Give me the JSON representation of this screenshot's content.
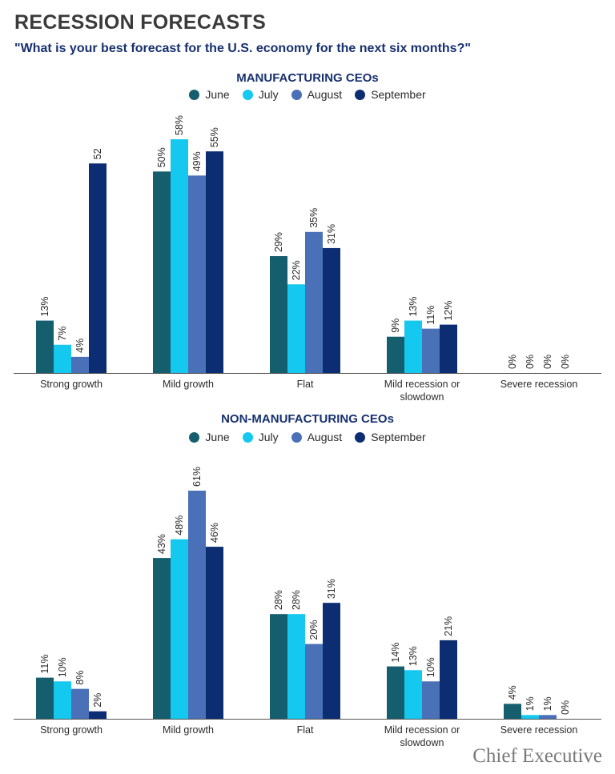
{
  "header": {
    "title": "RECESSION FORECASTS",
    "subtitle": "\"What is your best forecast for the U.S. economy for the next six months?\""
  },
  "footer": {
    "brand": "Chief Executive"
  },
  "series_colors": [
    "#155e6e",
    "#14c8ef",
    "#4a70b8",
    "#0d2d73"
  ],
  "chart_data": [
    {
      "type": "bar",
      "title": "MANUFACTURING CEOs",
      "legend_position": "top-center",
      "grid": false,
      "ylim": [
        0,
        58
      ],
      "categories": [
        "Strong growth",
        "Mild growth",
        "Flat",
        "Mild recession or slowdown",
        "Severe recession"
      ],
      "series": [
        {
          "name": "June",
          "values": [
            13,
            50,
            29,
            9,
            0
          ],
          "labels": [
            "13%",
            "50%",
            "29%",
            "9%",
            "0%"
          ]
        },
        {
          "name": "July",
          "values": [
            7,
            58,
            22,
            13,
            0
          ],
          "labels": [
            "7%",
            "58%",
            "22%",
            "13%",
            "0%"
          ]
        },
        {
          "name": "August",
          "values": [
            4,
            49,
            35,
            11,
            0
          ],
          "labels": [
            "4%",
            "49%",
            "35%",
            "11%",
            "0%"
          ]
        },
        {
          "name": "September",
          "values": [
            52,
            55,
            31,
            12,
            0
          ],
          "labels": [
            "52",
            "55%",
            "31%",
            "12%",
            "0%"
          ]
        }
      ]
    },
    {
      "type": "bar",
      "title": "NON-MANUFACTURING CEOs",
      "legend_position": "top-center",
      "grid": false,
      "ylim": [
        0,
        61
      ],
      "categories": [
        "Strong growth",
        "Mild growth",
        "Flat",
        "Mild recession or slowdown",
        "Severe recession"
      ],
      "series": [
        {
          "name": "June",
          "values": [
            11,
            43,
            28,
            14,
            4
          ],
          "labels": [
            "11%",
            "43%",
            "28%",
            "14%",
            "4%"
          ]
        },
        {
          "name": "July",
          "values": [
            10,
            48,
            28,
            13,
            1
          ],
          "labels": [
            "10%",
            "48%",
            "28%",
            "13%",
            "1%"
          ]
        },
        {
          "name": "August",
          "values": [
            8,
            61,
            20,
            10,
            1
          ],
          "labels": [
            "8%",
            "61%",
            "20%",
            "10%",
            "1%"
          ]
        },
        {
          "name": "September",
          "values": [
            2,
            46,
            31,
            21,
            0
          ],
          "labels": [
            "2%",
            "46%",
            "31%",
            "21%",
            "0%"
          ]
        }
      ]
    }
  ]
}
